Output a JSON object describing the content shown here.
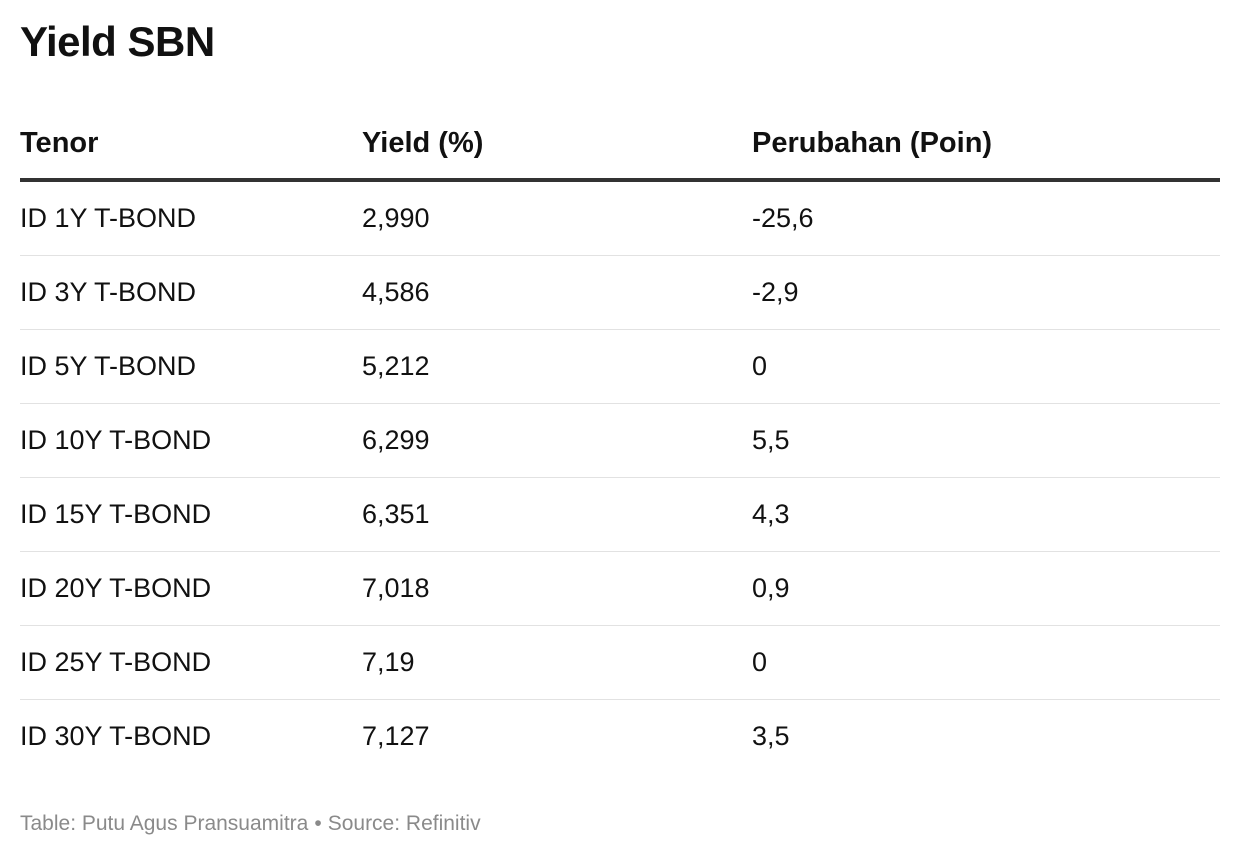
{
  "title": "Yield SBN",
  "chart_data": {
    "type": "table",
    "columns": [
      "Tenor",
      "Yield (%)",
      "Perubahan (Poin)"
    ],
    "rows": [
      {
        "tenor": "ID 1Y T-BOND",
        "yield": "2,990",
        "change": "-25,6"
      },
      {
        "tenor": "ID 3Y T-BOND",
        "yield": "4,586",
        "change": "-2,9"
      },
      {
        "tenor": "ID 5Y T-BOND",
        "yield": "5,212",
        "change": "0"
      },
      {
        "tenor": "ID 10Y T-BOND",
        "yield": "6,299",
        "change": "5,5"
      },
      {
        "tenor": "ID 15Y T-BOND",
        "yield": "6,351",
        "change": "4,3"
      },
      {
        "tenor": "ID 20Y T-BOND",
        "yield": "7,018",
        "change": "0,9"
      },
      {
        "tenor": "ID 25Y T-BOND",
        "yield": "7,19",
        "change": "0"
      },
      {
        "tenor": "ID 30Y T-BOND",
        "yield": "7,127",
        "change": "3,5"
      }
    ]
  },
  "footer": {
    "table_credit": "Table: Putu Agus Pransuamitra",
    "separator": "•",
    "source": "Source: Refinitiv"
  },
  "colors": {
    "text": "#111111",
    "header_rule": "#333333",
    "row_divider": "#e2e2e2",
    "footer_text": "#8a8a8a"
  }
}
